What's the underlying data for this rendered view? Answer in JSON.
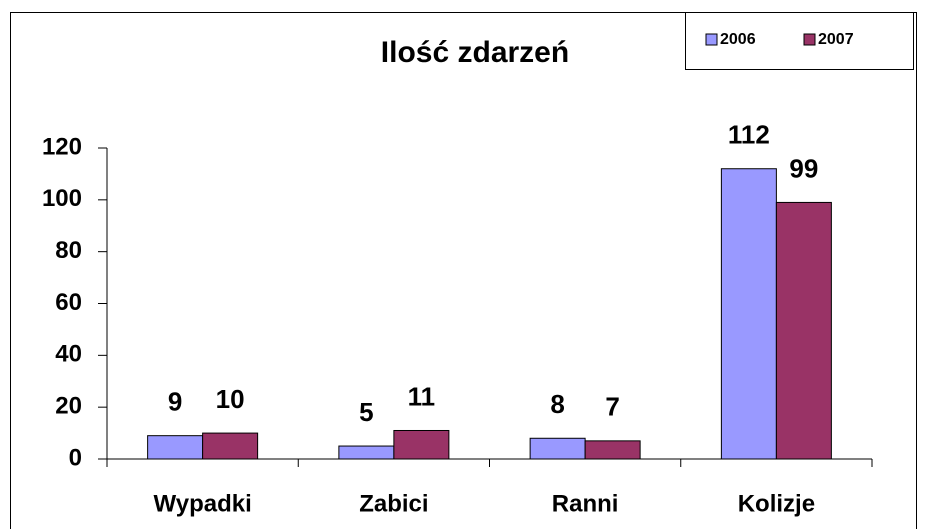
{
  "chart_data": {
    "type": "bar",
    "title": "Ilość zdarzeń",
    "categories": [
      "Wypadki",
      "Zabici",
      "Ranni",
      "Kolizje"
    ],
    "series": [
      {
        "name": "2006",
        "color": "#9999ff",
        "values": [
          9,
          5,
          8,
          112
        ]
      },
      {
        "name": "2007",
        "color": "#993366",
        "values": [
          10,
          11,
          7,
          99
        ]
      }
    ],
    "ylim": [
      0,
      120
    ],
    "yticks": [
      0,
      20,
      40,
      60,
      80,
      100,
      120
    ],
    "grid": false,
    "legend": "top-right"
  }
}
